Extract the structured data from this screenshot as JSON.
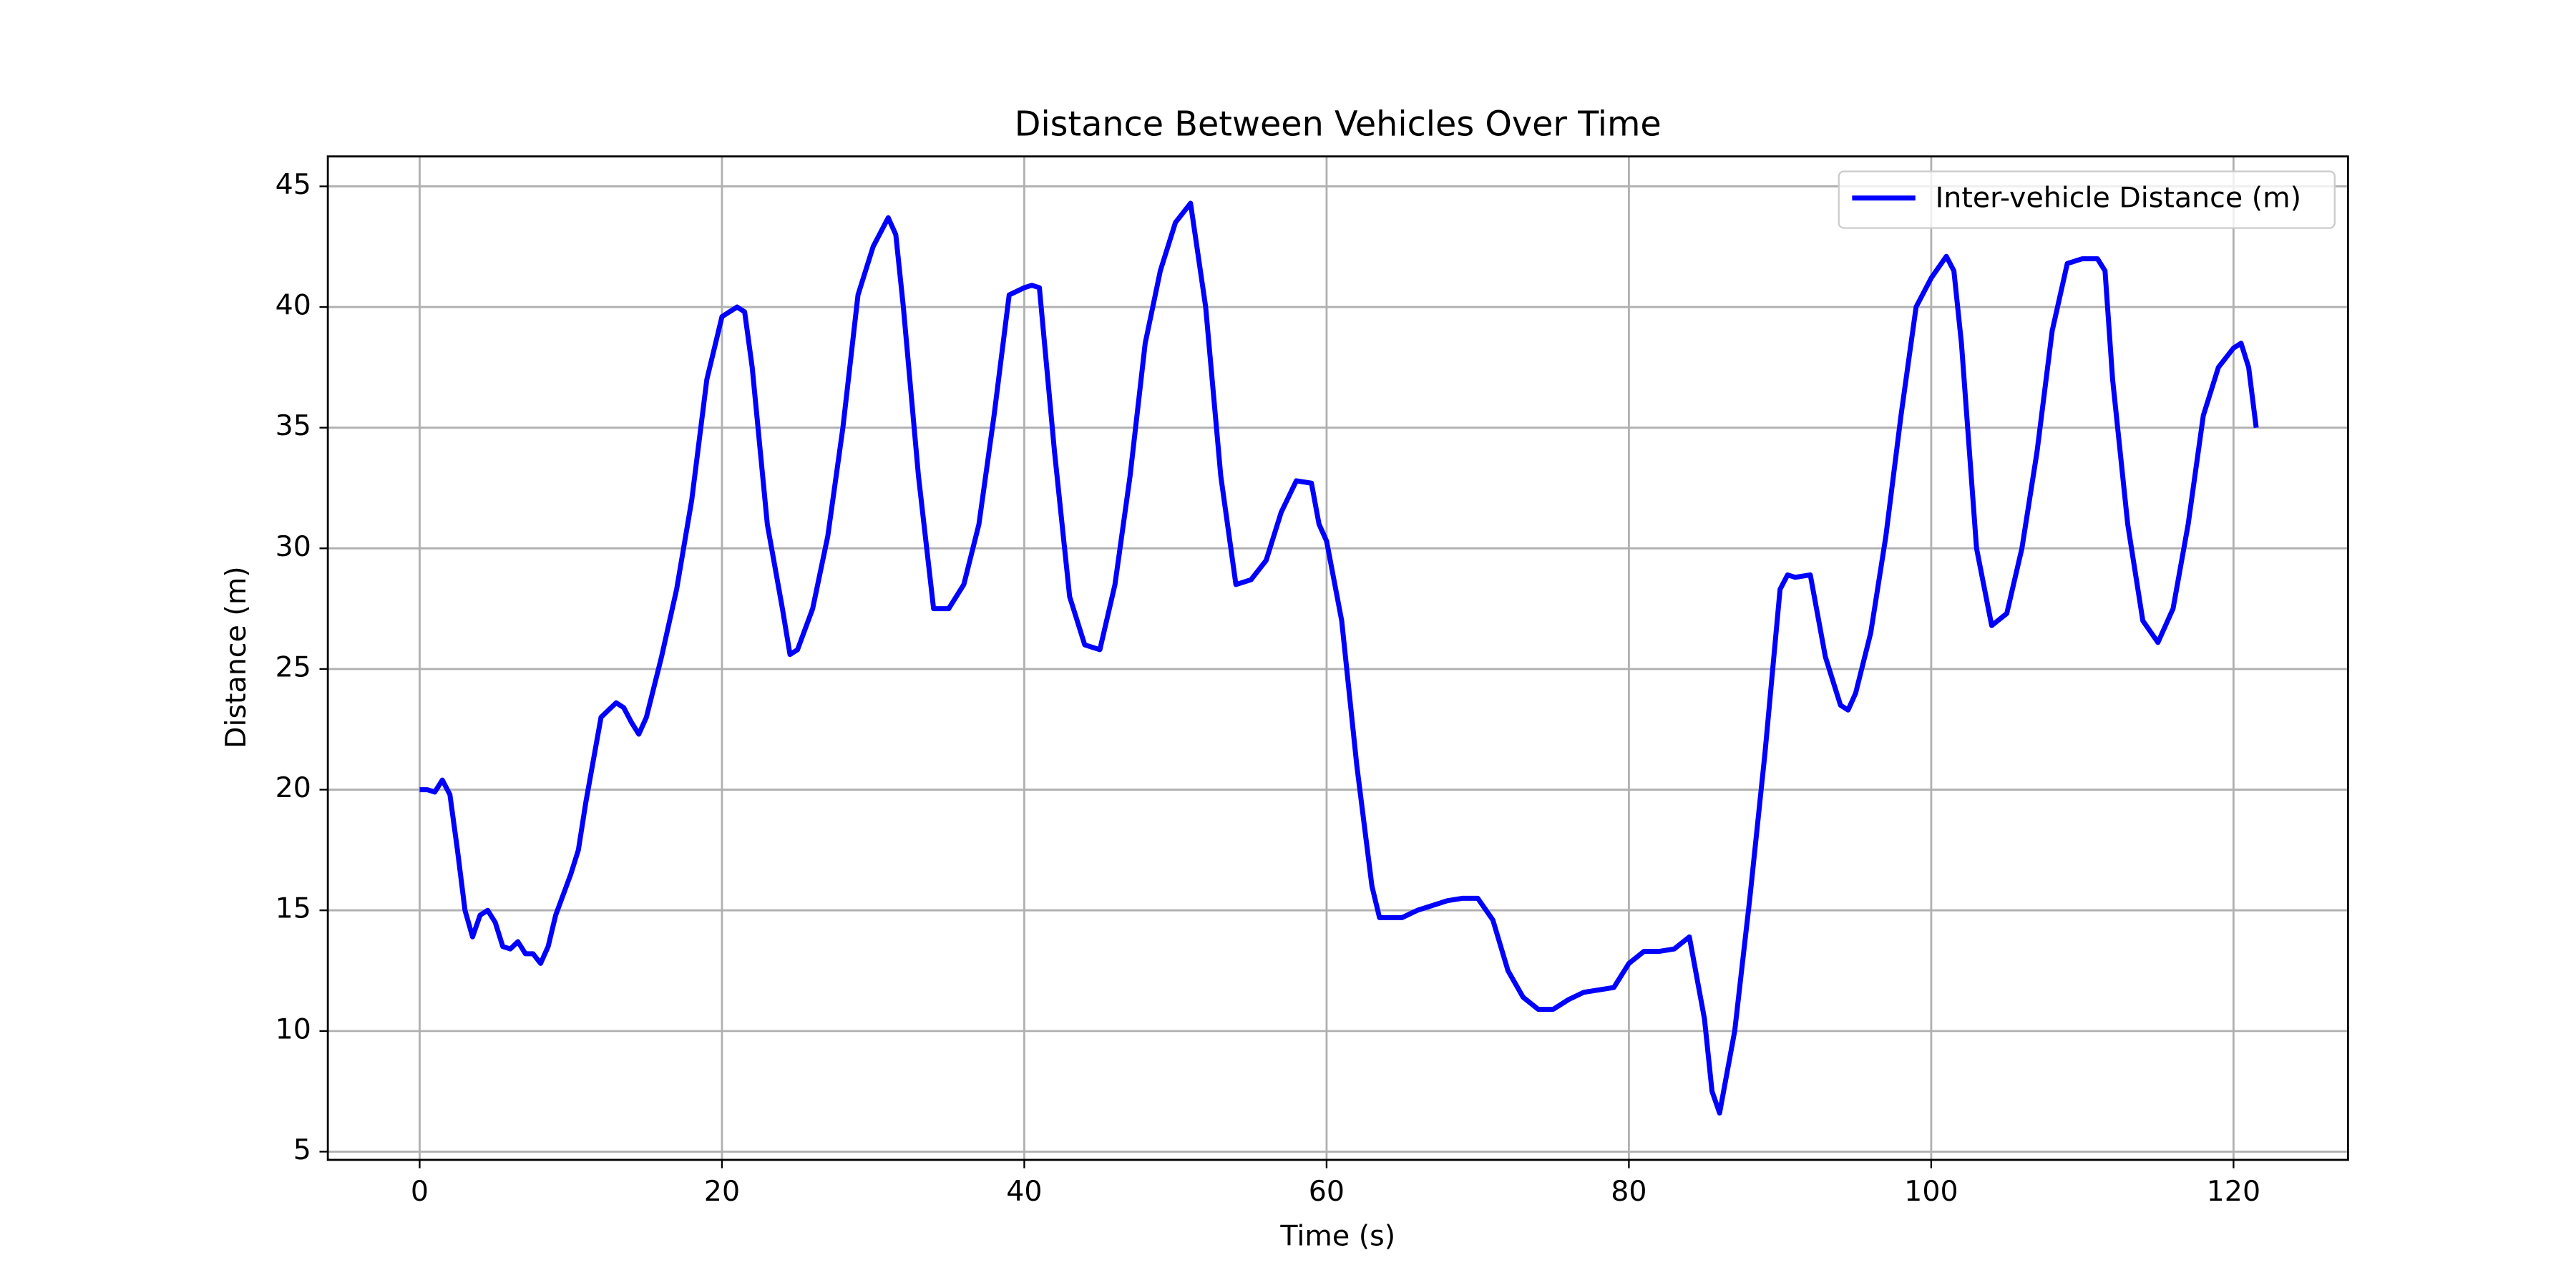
{
  "chart_data": {
    "type": "line",
    "title": "Distance Between Vehicles Over Time",
    "xlabel": "Time (s)",
    "ylabel": "Distance (m)",
    "x": [
      0,
      0.5,
      1,
      1.5,
      2,
      2.5,
      3,
      3.5,
      4,
      4.5,
      5,
      5.5,
      6,
      6.5,
      7,
      7.5,
      8,
      8.5,
      9,
      10,
      10.5,
      11,
      12,
      13,
      13.5,
      14,
      14.5,
      15,
      16,
      17,
      18,
      19,
      20,
      21,
      21.5,
      22,
      23,
      24,
      24.5,
      25,
      26,
      27,
      28,
      29,
      30,
      31,
      31.5,
      32,
      33,
      34,
      35,
      36,
      37,
      38,
      39,
      40,
      40.5,
      41,
      42,
      43,
      44,
      45,
      46,
      47,
      48,
      49,
      50,
      51,
      52,
      53,
      54,
      55,
      56,
      57,
      58,
      59,
      59.5,
      60,
      61,
      62,
      63,
      63.5,
      64,
      65,
      66,
      67,
      68,
      69,
      70,
      71,
      72,
      73,
      74,
      75,
      76,
      77,
      78,
      79,
      80,
      81,
      82,
      83,
      84,
      85,
      85.5,
      86,
      87,
      88,
      89,
      90,
      90.5,
      91,
      92,
      93,
      94,
      94.5,
      95,
      96,
      97,
      98,
      99,
      100,
      101,
      101.5,
      102,
      103,
      104,
      105,
      106,
      107,
      108,
      109,
      110,
      111,
      111.5,
      112,
      113,
      114,
      115,
      116,
      117,
      118,
      119,
      120,
      120.5,
      121,
      121.5
    ],
    "series": [
      {
        "name": "Inter-vehicle Distance (m)",
        "color": "#0000ff",
        "values": [
          20,
          20,
          19.9,
          20.4,
          19.8,
          17.5,
          15,
          13.9,
          14.8,
          15,
          14.5,
          13.5,
          13.4,
          13.7,
          13.2,
          13.2,
          12.8,
          13.5,
          14.8,
          16.5,
          17.5,
          19.5,
          23,
          23.6,
          23.4,
          22.8,
          22.3,
          23,
          25.5,
          28.3,
          32,
          37,
          39.6,
          40,
          39.8,
          37.5,
          31,
          27.5,
          25.6,
          25.8,
          27.5,
          30.5,
          35,
          40.5,
          42.5,
          43.7,
          43,
          40,
          33,
          27.5,
          27.5,
          28.5,
          31,
          35.5,
          40.5,
          40.8,
          40.9,
          40.8,
          34,
          28,
          26,
          25.8,
          28.5,
          33,
          38.5,
          41.5,
          43.5,
          44.3,
          40,
          33,
          28.5,
          28.7,
          29.5,
          31.5,
          32.8,
          32.7,
          31,
          30.3,
          27,
          21,
          16,
          14.7,
          14.7,
          14.7,
          15,
          15.2,
          15.4,
          15.5,
          15.5,
          14.6,
          12.5,
          11.4,
          10.9,
          10.9,
          11.3,
          11.6,
          11.7,
          11.8,
          12.8,
          13.3,
          13.3,
          13.4,
          13.9,
          10.5,
          7.5,
          6.6,
          10,
          15.5,
          21.5,
          28.3,
          28.9,
          28.8,
          28.9,
          25.5,
          23.5,
          23.3,
          24,
          26.5,
          30.5,
          35.5,
          40,
          41.2,
          42.1,
          41.5,
          38.5,
          30,
          26.8,
          27.3,
          30,
          34,
          39,
          41.8,
          42,
          42,
          41.5,
          37,
          31,
          27,
          26.1,
          27.5,
          31,
          35.5,
          37.5,
          38.3,
          38.5,
          37.5,
          35
        ]
      }
    ],
    "xlim": [
      -6.075,
      127.575
    ],
    "ylim": [
      4.66,
      46.24
    ],
    "xticks": [
      0,
      20,
      40,
      60,
      80,
      100,
      120
    ],
    "yticks": [
      5,
      10,
      15,
      20,
      25,
      30,
      35,
      40,
      45
    ],
    "grid": true,
    "legend": "upper right"
  }
}
